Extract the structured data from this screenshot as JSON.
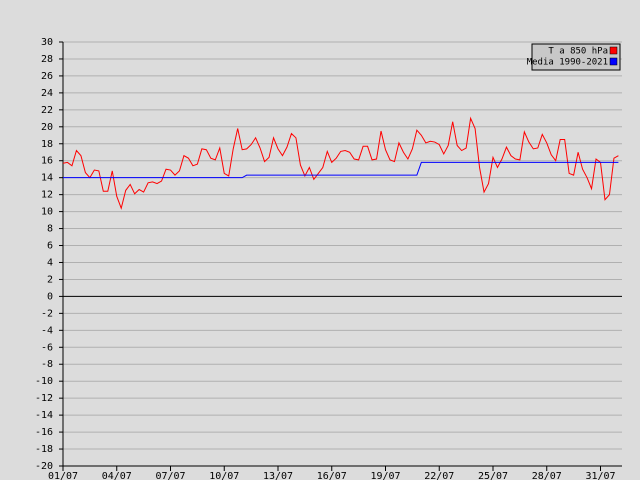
{
  "chart_data": {
    "type": "line",
    "legend_position": "top-right",
    "grid": true,
    "xlim": [
      0,
      31.2
    ],
    "ylim": [
      -20,
      30
    ],
    "yticks": [
      -20,
      -18,
      -16,
      -14,
      -12,
      -10,
      -8,
      -6,
      -4,
      -2,
      0,
      2,
      4,
      6,
      8,
      10,
      12,
      14,
      16,
      18,
      20,
      22,
      24,
      26,
      28,
      30
    ],
    "xticks": [
      {
        "value": 0,
        "label": "01/07"
      },
      {
        "value": 3,
        "label": "04/07"
      },
      {
        "value": 6,
        "label": "07/07"
      },
      {
        "value": 9,
        "label": "10/07"
      },
      {
        "value": 12,
        "label": "13/07"
      },
      {
        "value": 15,
        "label": "16/07"
      },
      {
        "value": 18,
        "label": "19/07"
      },
      {
        "value": 21,
        "label": "22/07"
      },
      {
        "value": 24,
        "label": "25/07"
      },
      {
        "value": 27,
        "label": "28/07"
      },
      {
        "value": 30,
        "label": "31/07"
      }
    ],
    "x": [
      0,
      0.25,
      0.5,
      0.75,
      1,
      1.25,
      1.5,
      1.75,
      2,
      2.25,
      2.5,
      2.75,
      3,
      3.25,
      3.5,
      3.75,
      4,
      4.25,
      4.5,
      4.75,
      5,
      5.25,
      5.5,
      5.75,
      6,
      6.25,
      6.5,
      6.75,
      7,
      7.25,
      7.5,
      7.75,
      8,
      8.25,
      8.5,
      8.75,
      9,
      9.25,
      9.5,
      9.75,
      10,
      10.25,
      10.5,
      10.75,
      11,
      11.25,
      11.5,
      11.75,
      12,
      12.25,
      12.5,
      12.75,
      13,
      13.25,
      13.5,
      13.75,
      14,
      14.25,
      14.5,
      14.75,
      15,
      15.25,
      15.5,
      15.75,
      16,
      16.25,
      16.5,
      16.75,
      17,
      17.25,
      17.5,
      17.75,
      18,
      18.25,
      18.5,
      18.75,
      19,
      19.25,
      19.5,
      19.75,
      20,
      20.25,
      20.5,
      20.75,
      21,
      21.25,
      21.5,
      21.75,
      22,
      22.25,
      22.5,
      22.75,
      23,
      23.25,
      23.5,
      23.75,
      24,
      24.25,
      24.5,
      24.75,
      25,
      25.25,
      25.5,
      25.75,
      26,
      26.25,
      26.5,
      26.75,
      27,
      27.25,
      27.5,
      27.75,
      28,
      28.25,
      28.5,
      28.75,
      29,
      29.25,
      29.5,
      29.75,
      30,
      30.25,
      30.5,
      30.75,
      31
    ],
    "series": [
      {
        "name": "T a 850 hPa",
        "color": "#ff0000",
        "values": [
          15.7,
          15.8,
          15.4,
          17.2,
          16.6,
          14.6,
          14.0,
          14.9,
          14.8,
          12.4,
          12.4,
          14.8,
          11.8,
          10.4,
          12.5,
          13.2,
          12.1,
          12.6,
          12.3,
          13.4,
          13.5,
          13.3,
          13.6,
          15.0,
          14.9,
          14.3,
          14.8,
          16.6,
          16.3,
          15.4,
          15.6,
          17.4,
          17.3,
          16.3,
          16.1,
          17.5,
          14.5,
          14.2,
          17.4,
          19.8,
          17.3,
          17.4,
          17.9,
          18.7,
          17.5,
          15.9,
          16.4,
          18.7,
          17.4,
          16.6,
          17.6,
          19.2,
          18.7,
          15.5,
          14.2,
          15.2,
          13.8,
          14.5,
          15.2,
          17.1,
          15.8,
          16.3,
          17.1,
          17.2,
          17.0,
          16.2,
          16.1,
          17.7,
          17.7,
          16.1,
          16.2,
          19.5,
          17.3,
          16.1,
          15.9,
          18.1,
          17.0,
          16.2,
          17.4,
          19.6,
          19.0,
          18.1,
          18.3,
          18.2,
          17.9,
          16.8,
          17.8,
          20.6,
          17.8,
          17.2,
          17.5,
          21.0,
          19.8,
          15.2,
          12.3,
          13.3,
          16.4,
          15.2,
          16.2,
          17.6,
          16.6,
          16.2,
          16.1,
          19.4,
          18.2,
          17.4,
          17.5,
          19.1,
          18.1,
          16.7,
          16.0,
          18.5,
          18.5,
          14.5,
          14.3,
          17.0,
          15.0,
          14.0,
          12.7,
          16.2,
          15.8,
          11.4,
          12.0,
          16.3,
          16.6
        ]
      },
      {
        "name": "Media 1990-2021",
        "color": "#0000ff",
        "values": [
          14.0,
          14.0,
          14.0,
          14.0,
          14.0,
          14.0,
          14.0,
          14.0,
          14.0,
          14.0,
          14.0,
          14.0,
          14.0,
          14.0,
          14.0,
          14.0,
          14.0,
          14.0,
          14.0,
          14.0,
          14.0,
          14.0,
          14.0,
          14.0,
          14.0,
          14.0,
          14.0,
          14.0,
          14.0,
          14.0,
          14.0,
          14.0,
          14.0,
          14.0,
          14.0,
          14.0,
          14.0,
          14.0,
          14.0,
          14.0,
          14.0,
          14.3,
          14.3,
          14.3,
          14.3,
          14.3,
          14.3,
          14.3,
          14.3,
          14.3,
          14.3,
          14.3,
          14.3,
          14.3,
          14.3,
          14.3,
          14.3,
          14.3,
          14.3,
          14.3,
          14.3,
          14.3,
          14.3,
          14.3,
          14.3,
          14.3,
          14.3,
          14.3,
          14.3,
          14.3,
          14.3,
          14.3,
          14.3,
          14.3,
          14.3,
          14.3,
          14.3,
          14.3,
          14.3,
          14.3,
          15.8,
          15.8,
          15.8,
          15.8,
          15.8,
          15.8,
          15.8,
          15.8,
          15.8,
          15.8,
          15.8,
          15.8,
          15.8,
          15.8,
          15.8,
          15.8,
          15.8,
          15.8,
          15.8,
          15.8,
          15.8,
          15.8,
          15.8,
          15.8,
          15.8,
          15.8,
          15.8,
          15.8,
          15.8,
          15.8,
          15.8,
          15.8,
          15.8,
          15.8,
          15.8,
          15.8,
          15.8,
          15.8,
          15.8,
          15.8,
          15.8,
          15.8,
          15.8,
          15.8,
          15.8
        ]
      }
    ]
  }
}
